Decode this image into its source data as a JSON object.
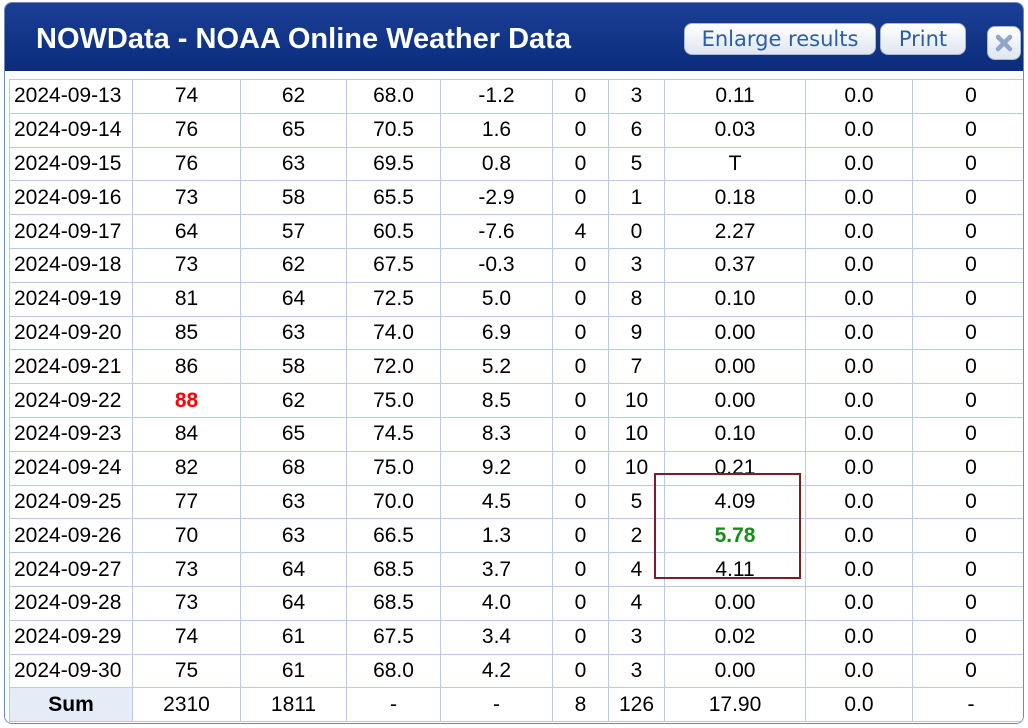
{
  "window": {
    "title": "NOWData - NOAA Online Weather Data",
    "enlarge_label": "Enlarge results",
    "print_label": "Print"
  },
  "table": {
    "rows": [
      {
        "date": "2024-09-13",
        "max": "74",
        "min": "62",
        "avg": "68.0",
        "dep": "-1.2",
        "hdd": "0",
        "cdd": "3",
        "precip": "0.11",
        "snow": "0.0",
        "depth": "0"
      },
      {
        "date": "2024-09-14",
        "max": "76",
        "min": "65",
        "avg": "70.5",
        "dep": "1.6",
        "hdd": "0",
        "cdd": "6",
        "precip": "0.03",
        "snow": "0.0",
        "depth": "0"
      },
      {
        "date": "2024-09-15",
        "max": "76",
        "min": "63",
        "avg": "69.5",
        "dep": "0.8",
        "hdd": "0",
        "cdd": "5",
        "precip": "T",
        "snow": "0.0",
        "depth": "0"
      },
      {
        "date": "2024-09-16",
        "max": "73",
        "min": "58",
        "avg": "65.5",
        "dep": "-2.9",
        "hdd": "0",
        "cdd": "1",
        "precip": "0.18",
        "snow": "0.0",
        "depth": "0"
      },
      {
        "date": "2024-09-17",
        "max": "64",
        "min": "57",
        "avg": "60.5",
        "dep": "-7.6",
        "hdd": "4",
        "cdd": "0",
        "precip": "2.27",
        "snow": "0.0",
        "depth": "0"
      },
      {
        "date": "2024-09-18",
        "max": "73",
        "min": "62",
        "avg": "67.5",
        "dep": "-0.3",
        "hdd": "0",
        "cdd": "3",
        "precip": "0.37",
        "snow": "0.0",
        "depth": "0"
      },
      {
        "date": "2024-09-19",
        "max": "81",
        "min": "64",
        "avg": "72.5",
        "dep": "5.0",
        "hdd": "0",
        "cdd": "8",
        "precip": "0.10",
        "snow": "0.0",
        "depth": "0"
      },
      {
        "date": "2024-09-20",
        "max": "85",
        "min": "63",
        "avg": "74.0",
        "dep": "6.9",
        "hdd": "0",
        "cdd": "9",
        "precip": "0.00",
        "snow": "0.0",
        "depth": "0"
      },
      {
        "date": "2024-09-21",
        "max": "86",
        "min": "58",
        "avg": "72.0",
        "dep": "5.2",
        "hdd": "0",
        "cdd": "7",
        "precip": "0.00",
        "snow": "0.0",
        "depth": "0"
      },
      {
        "date": "2024-09-22",
        "max": "88",
        "min": "62",
        "avg": "75.0",
        "dep": "8.5",
        "hdd": "0",
        "cdd": "10",
        "precip": "0.00",
        "snow": "0.0",
        "depth": "0",
        "max_highlight": "#ff0000"
      },
      {
        "date": "2024-09-23",
        "max": "84",
        "min": "65",
        "avg": "74.5",
        "dep": "8.3",
        "hdd": "0",
        "cdd": "10",
        "precip": "0.10",
        "snow": "0.0",
        "depth": "0"
      },
      {
        "date": "2024-09-24",
        "max": "82",
        "min": "68",
        "avg": "75.0",
        "dep": "9.2",
        "hdd": "0",
        "cdd": "10",
        "precip": "0.21",
        "snow": "0.0",
        "depth": "0"
      },
      {
        "date": "2024-09-25",
        "max": "77",
        "min": "63",
        "avg": "70.0",
        "dep": "4.5",
        "hdd": "0",
        "cdd": "5",
        "precip": "4.09",
        "snow": "0.0",
        "depth": "0"
      },
      {
        "date": "2024-09-26",
        "max": "70",
        "min": "63",
        "avg": "66.5",
        "dep": "1.3",
        "hdd": "0",
        "cdd": "2",
        "precip": "5.78",
        "snow": "0.0",
        "depth": "0",
        "precip_highlight": "#1a8a1a"
      },
      {
        "date": "2024-09-27",
        "max": "73",
        "min": "64",
        "avg": "68.5",
        "dep": "3.7",
        "hdd": "0",
        "cdd": "4",
        "precip": "4.11",
        "snow": "0.0",
        "depth": "0"
      },
      {
        "date": "2024-09-28",
        "max": "73",
        "min": "64",
        "avg": "68.5",
        "dep": "4.0",
        "hdd": "0",
        "cdd": "4",
        "precip": "0.00",
        "snow": "0.0",
        "depth": "0"
      },
      {
        "date": "2024-09-29",
        "max": "74",
        "min": "61",
        "avg": "67.5",
        "dep": "3.4",
        "hdd": "0",
        "cdd": "3",
        "precip": "0.02",
        "snow": "0.0",
        "depth": "0"
      },
      {
        "date": "2024-09-30",
        "max": "75",
        "min": "61",
        "avg": "68.0",
        "dep": "4.2",
        "hdd": "0",
        "cdd": "3",
        "precip": "0.00",
        "snow": "0.0",
        "depth": "0"
      }
    ],
    "sum": {
      "label": "Sum",
      "max": "2310",
      "min": "1811",
      "avg": "-",
      "dep": "-",
      "hdd": "8",
      "cdd": "126",
      "precip": "17.90",
      "snow": "0.0",
      "depth": "-"
    }
  },
  "colors": {
    "titlebar": "#0b2c7d",
    "grid": "#b7cbe7",
    "highlight_box": "#7a1f2a"
  }
}
